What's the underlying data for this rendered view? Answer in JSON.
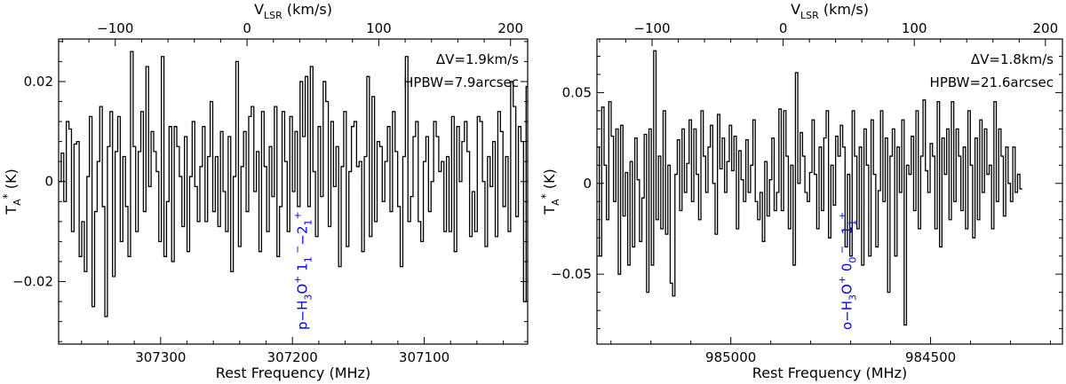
{
  "chart_data": [
    {
      "type": "line",
      "line_style": "step",
      "xlabel": "Rest Frequency (MHz)",
      "top_xlabel": "V_LSR (km/s)",
      "ylabel": "T_A* (K)",
      "xlim": [
        307377.4,
        307021.5
      ],
      "ylim": [
        -0.0325,
        0.0285
      ],
      "velocity_lim": [
        -143,
        213
      ],
      "x_ticks": [
        307300,
        307200,
        307100
      ],
      "x_tick_labels": [
        "307300",
        "307200",
        "307100"
      ],
      "y_ticks": [
        0.02,
        0.0,
        -0.02
      ],
      "y_tick_labels": [
        "0.02",
        "0",
        "−0.02"
      ],
      "velocity_ticks": [
        -100,
        0,
        100,
        200
      ],
      "velocity_tick_labels": [
        "−100",
        "0",
        "100",
        "200"
      ],
      "annotations": [
        "ΔV=1.9km/s",
        "HPBW=7.9arcsec"
      ],
      "line_label": {
        "text": "p−H3O+ 11−−21+",
        "x": 307192.3,
        "color": "#0000ee"
      },
      "series": [
        {
          "x_start": 307377.4,
          "x_step": -1.9489,
          "values": [
            0.0,
            0.0057,
            -0.004,
            0.012,
            0.0105,
            -0.01,
            0.0075,
            0.008,
            -0.015,
            -0.008,
            -0.018,
            0.001,
            0.013,
            -0.025,
            -0.006,
            0.004,
            0.015,
            -0.005,
            -0.027,
            0.007,
            0.014,
            -0.019,
            0.006,
            0.013,
            -0.012,
            0.005,
            -0.005,
            -0.015,
            0.026,
            0.007,
            -0.01,
            0.006,
            0.014,
            -0.006,
            0.023,
            -0.001,
            0.01,
            0.006,
            0.002,
            -0.012,
            0.025,
            -0.015,
            -0.004,
            0.011,
            -0.016,
            0.011,
            0.007,
            0.001,
            -0.009,
            0.009,
            -0.014,
            0.001,
            0.012,
            -0.001,
            -0.008,
            0.003,
            0.011,
            -0.008,
            0.005,
            0.016,
            -0.006,
            0.005,
            -0.009,
            0.01,
            -0.002,
            -0.01,
            0.009,
            -0.018,
            0.001,
            0.024,
            -0.013,
            0.003,
            0.01,
            -0.006,
            0.013,
            0.015,
            -0.002,
            0.006,
            -0.014,
            0.014,
            0.003,
            -0.01,
            0.007,
            -0.003,
            0.015,
            -0.015,
            -0.005,
            0.014,
            0.004,
            -0.01,
            0.013,
            -0.002,
            0.01,
            -0.005,
            0.02,
            0.009,
            0.021,
            -0.005,
            0.023,
            0.002,
            -0.011,
            0.011,
            -0.003,
            0.02,
            0.016,
            -0.009,
            0.012,
            -0.001,
            0.007,
            -0.017,
            0.003,
            0.014,
            -0.013,
            0.002,
            0.011,
            0.012,
            0.003,
            0.004,
            -0.014,
            0.005,
            0.021,
            -0.011,
            0.017,
            -0.008,
            0.008,
            0.007,
            -0.004,
            0.004,
            0.011,
            -0.006,
            0.014,
            0.006,
            -0.005,
            -0.017,
            0.005,
            0.025,
            -0.008,
            -0.003,
            0.009,
            0.012,
            -0.008,
            -0.012,
            0.004,
            0.009,
            -0.006,
            0.0,
            0.012,
            0.009,
            0.002,
            0.004,
            -0.01,
            0.005,
            -0.01,
            0.013,
            -0.014,
            0.011,
            0.0,
            0.008,
            0.012,
            0.006,
            -0.011,
            -0.002,
            -0.01,
            0.013,
            0.012,
            0.0,
            -0.013,
            0.005,
            -0.001,
            0.008,
            -0.011,
            0.014,
            0.01,
            -0.005,
            0.005,
            -0.01,
            0.02,
            0.015,
            -0.007,
            0.011,
            0.008,
            -0.024,
            0.019,
            -0.018,
            0.018,
            0.016,
            -0.017,
            0.013,
            0.0
          ]
        }
      ]
    },
    {
      "type": "line",
      "line_style": "step",
      "xlabel": "Rest Frequency (MHz)",
      "top_xlabel": "V_LSR (km/s)",
      "ylabel": "T_A* (K)",
      "xlim": [
        985335,
        984170
      ],
      "ylim": [
        -0.0885,
        0.0795
      ],
      "velocity_lim": [
        -142,
        213
      ],
      "x_ticks": [
        985000,
        984500
      ],
      "x_tick_labels": [
        "985000",
        "984500"
      ],
      "y_ticks": [
        0.05,
        0.0,
        -0.05
      ],
      "y_tick_labels": [
        "0.05",
        "0",
        "−0.05"
      ],
      "velocity_ticks": [
        -100,
        0,
        100,
        200
      ],
      "velocity_tick_labels": [
        "−100",
        "0",
        "100",
        "200"
      ],
      "annotations": [
        "ΔV=1.8km/s",
        "HPBW=21.6arcsec"
      ],
      "line_label": {
        "text": "o−H3O+ 00−−11+",
        "x": 984709.5,
        "color": "#0000ee"
      },
      "series": [
        {
          "x_start": 985335,
          "x_step": -5.9137,
          "values": [
            0.02,
            -0.04,
            0.042,
            0.01,
            -0.02,
            0.045,
            0.026,
            -0.01,
            0.03,
            -0.05,
            0.032,
            -0.018,
            0.006,
            -0.045,
            0.012,
            -0.035,
            0.025,
            0.002,
            -0.032,
            -0.008,
            0.027,
            -0.06,
            0.03,
            -0.045,
            0.073,
            -0.02,
            0.015,
            -0.025,
            0.04,
            -0.028,
            0.01,
            -0.055,
            -0.062,
            0.005,
            0.024,
            -0.015,
            0.03,
            -0.005,
            0.011,
            0.035,
            -0.01,
            0.03,
            0.005,
            -0.02,
            0.04,
            0.015,
            -0.005,
            0.02,
            0.032,
            0.0,
            -0.028,
            0.038,
            0.008,
            0.025,
            -0.005,
            0.012,
            0.032,
            0.007,
            0.026,
            -0.025,
            0.018,
            0.002,
            -0.01,
            0.024,
            -0.005,
            0.01,
            0.035,
            -0.01,
            -0.02,
            -0.005,
            -0.032,
            0.012,
            -0.018,
            0.002,
            0.025,
            -0.015,
            -0.005,
            0.041,
            -0.015,
            0.04,
            0.015,
            -0.025,
            0.01,
            -0.045,
            0.061,
            0.0,
            0.028,
            0.015,
            -0.005,
            -0.01,
            0.006,
            0.035,
            0.005,
            -0.025,
            0.02,
            -0.015,
            0.025,
            0.04,
            -0.03,
            0.01,
            -0.012,
            0.026,
            0.015,
            0.032,
            0.02,
            -0.035,
            0.005,
            -0.04,
            0.04,
            0.015,
            -0.025,
            0.02,
            -0.045,
            0.03,
            0.01,
            -0.04,
            0.035,
            0.005,
            -0.035,
            -0.004,
            0.04,
            -0.01,
            0.025,
            -0.06,
            0.015,
            0.03,
            -0.04,
            0.02,
            -0.005,
            0.035,
            -0.078,
            0.01,
            0.005,
            0.026,
            -0.015,
            0.04,
            -0.025,
            0.015,
            0.046,
            0.007,
            -0.005,
            0.022,
            0.015,
            -0.025,
            0.045,
            -0.035,
            0.025,
            0.005,
            0.03,
            -0.02,
            0.045,
            -0.01,
            0.03,
            0.015,
            -0.015,
            0.02,
            -0.025,
            0.04,
            0.01,
            -0.03,
            0.025,
            -0.02,
            0.035,
            -0.005,
            0.03,
            0.005,
            0.01,
            -0.025,
            0.045,
            -0.01,
            0.03,
            0.015,
            -0.018,
            0.02,
            0.0,
            -0.01,
            0.02,
            -0.005,
            0.005,
            -0.003
          ]
        }
      ]
    }
  ]
}
